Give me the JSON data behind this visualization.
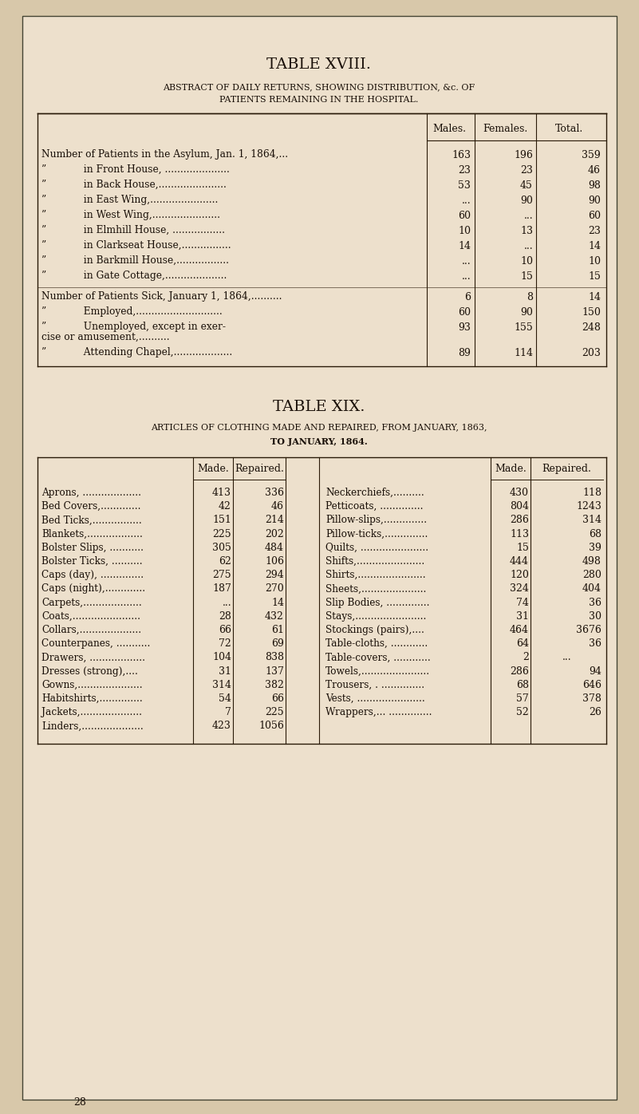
{
  "bg_color": "#ede0cc",
  "page_bg": "#d8c8aa",
  "text_color": "#1a1008",
  "title18": "TABLE XVIII.",
  "subtitle18_line1": "ABSTRACT OF DAILY RETURNS, SHOWING DISTRIBUTION, &c. OF",
  "subtitle18_line2": "PATIENTS REMAINING IN THE HOSPITAL.",
  "table18_rows": [
    [
      "Number of Patients in the Asylum, Jan. 1, 1864,...",
      "163",
      "196",
      "359"
    ],
    [
      "”            in Front House, .....................",
      "23",
      "23",
      "46"
    ],
    [
      "”            in Back House,......................",
      "53",
      "45",
      "98"
    ],
    [
      "”            in East Wing,......................",
      "...",
      "90",
      "90"
    ],
    [
      "”            in West Wing,......................",
      "60",
      "...",
      "60"
    ],
    [
      "”            in Elmhill House, .................",
      "10",
      "13",
      "23"
    ],
    [
      "”            in Clarkseat House,................",
      "14",
      "...",
      "14"
    ],
    [
      "”            in Barkmill House,.................",
      "...",
      "10",
      "10"
    ],
    [
      "”            in Gate Cottage,....................",
      "...",
      "15",
      "15"
    ],
    [
      "Number of Patients Sick, January 1, 1864,..........",
      "6",
      "8",
      "14"
    ],
    [
      "”            Employed,............................",
      "60",
      "90",
      "150"
    ],
    [
      "”            Unemployed, except in exer-\ncise or amusement,..........",
      "93",
      "155",
      "248"
    ],
    [
      "”            Attending Chapel,...................",
      "89",
      "114",
      "203"
    ]
  ],
  "title19": "TABLE XIX.",
  "subtitle19_line1": "ARTICLES OF CLOTHING MADE AND REPAIRED, FROM JANUARY, 1863,",
  "subtitle19_line2": "TO JANUARY, 1864.",
  "table19_left": [
    [
      "Aprons, ...................",
      "413",
      "336"
    ],
    [
      "Bed Covers,.............",
      "42",
      "46"
    ],
    [
      "Bed Ticks,................",
      "151",
      "214"
    ],
    [
      "Blankets,..................",
      "225",
      "202"
    ],
    [
      "Bolster Slips, ...........",
      "305",
      "484"
    ],
    [
      "Bolster Ticks, ..........",
      "62",
      "106"
    ],
    [
      "Caps (day), ..............",
      "275",
      "294"
    ],
    [
      "Caps (night),.............",
      "187",
      "270"
    ],
    [
      "Carpets,...................",
      "...",
      "14"
    ],
    [
      "Coats,......................",
      "28",
      "432"
    ],
    [
      "Collars,....................",
      "66",
      "61"
    ],
    [
      "Counterpanes, ...........",
      "72",
      "69"
    ],
    [
      "Drawers, ..................",
      "104",
      "838"
    ],
    [
      "Dresses (strong),....",
      "31",
      "137"
    ],
    [
      "Gowns,.....................",
      "314",
      "382"
    ],
    [
      "Habitshirts,..............",
      "54",
      "66"
    ],
    [
      "Jackets,....................",
      "7",
      "225"
    ],
    [
      "Linders,....................",
      "423",
      "1056"
    ]
  ],
  "table19_right": [
    [
      "Neckerchiefs,..........",
      "430",
      "118"
    ],
    [
      "Petticoats, ..............",
      "804",
      "1243"
    ],
    [
      "Pillow-slips,..............",
      "286",
      "314"
    ],
    [
      "Pillow-ticks,..............",
      "113",
      "68"
    ],
    [
      "Quilts, ......................",
      "15",
      "39"
    ],
    [
      "Shifts,......................",
      "444",
      "498"
    ],
    [
      "Shirts,......................",
      "120",
      "280"
    ],
    [
      "Sheets,.....................",
      "324",
      "404"
    ],
    [
      "Slip Bodies, ..............",
      "74",
      "36"
    ],
    [
      "Stays,.......................",
      "31",
      "30"
    ],
    [
      "Stockings (pairs),....",
      "464",
      "3676"
    ],
    [
      "Table-cloths, ............",
      "64",
      "36"
    ],
    [
      "Table-covers, ............",
      "2",
      "..."
    ],
    [
      "Towels,......................",
      "286",
      "94"
    ],
    [
      "Trousers, . ..............",
      "68",
      "646"
    ],
    [
      "Vests, ......................",
      "57",
      "378"
    ],
    [
      "Wrappers,... ..............",
      "52",
      "26"
    ],
    [
      "",
      "",
      ""
    ]
  ],
  "page_num": "28"
}
